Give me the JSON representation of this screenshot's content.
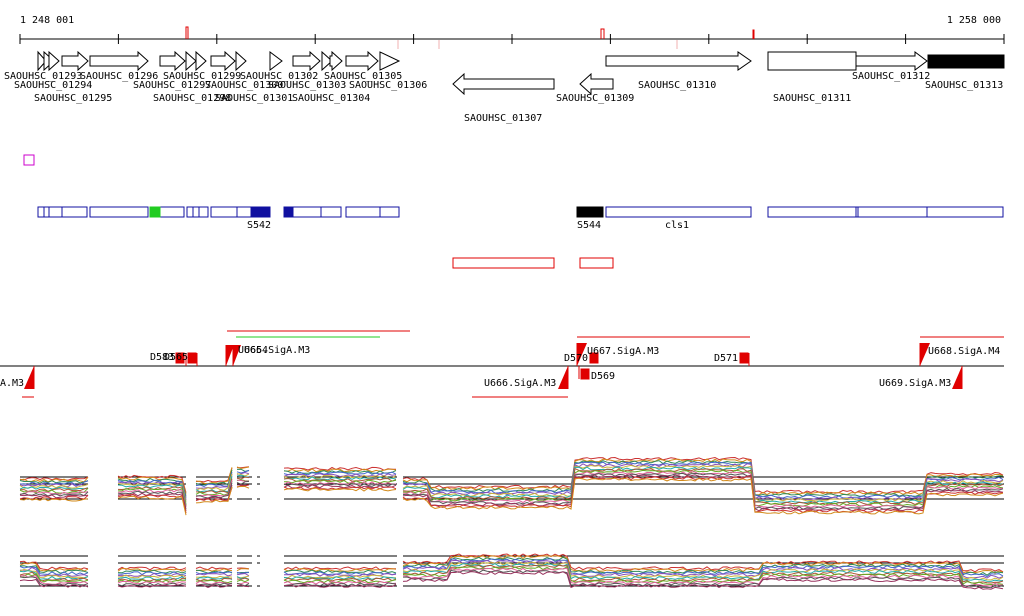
{
  "ruler": {
    "start_label": "1 248 001",
    "end_label": "1 258 000"
  },
  "genes": {
    "labels": [
      "SAOUHSC_01293",
      "SAOUHSC_01294",
      "SAOUHSC_01295",
      "SAOUHSC_01296",
      "SAOUHSC_01297",
      "SAOUHSC_01298",
      "SAOUHSC_01299",
      "SAOUHSC_01300",
      "SAOUHSC_01301",
      "SAOUHSC_01302",
      "SAOUHSC_01303",
      "SAOUHSC_01304",
      "SAOUHSC_01305",
      "SAOUHSC_01306",
      "SAOUHSC_01307",
      "SAOUHSC_01309",
      "SAOUHSC_01310",
      "SAOUHSC_01311",
      "SAOUHSC_01312",
      "SAOUHSC_01313"
    ]
  },
  "segments": {
    "labels": [
      "S542",
      "S544",
      "cls1"
    ]
  },
  "tss": {
    "labels": [
      "D583",
      "D565",
      "U665.SigA.M3",
      "U664",
      "D570",
      "U667.SigA.M3",
      "D571",
      "U668.SigA.M4",
      "A.M3",
      "U666.SigA.M3",
      "D569",
      "U669.SigA.M3"
    ]
  },
  "colors": {
    "accent_red": "#e00000",
    "operon_blue": "#1010a0",
    "highlight_green": "#22cc22",
    "sigma_magenta": "#cc00cc"
  }
}
